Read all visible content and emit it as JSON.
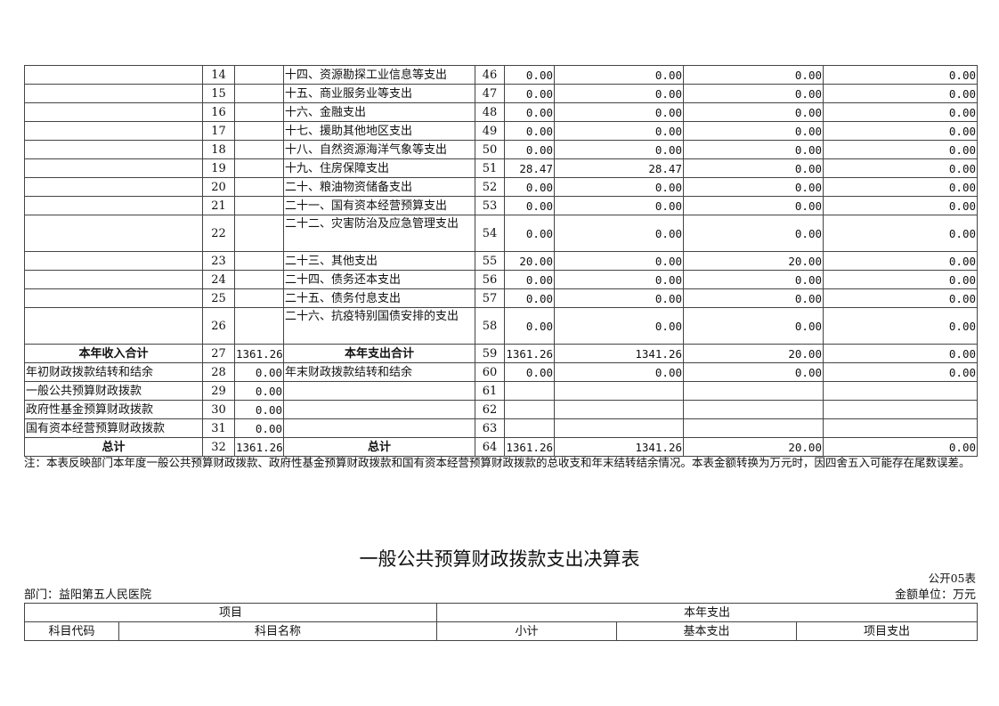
{
  "table1": {
    "rows": [
      {
        "ll": "",
        "ln": "14",
        "lv": "",
        "rl": "十四、资源勘探工业信息等支出",
        "rn": "46",
        "v": [
          "0.00",
          "0.00",
          "0.00",
          "0.00"
        ]
      },
      {
        "ll": "",
        "ln": "15",
        "lv": "",
        "rl": "十五、商业服务业等支出",
        "rn": "47",
        "v": [
          "0.00",
          "0.00",
          "0.00",
          "0.00"
        ]
      },
      {
        "ll": "",
        "ln": "16",
        "lv": "",
        "rl": "十六、金融支出",
        "rn": "48",
        "v": [
          "0.00",
          "0.00",
          "0.00",
          "0.00"
        ]
      },
      {
        "ll": "",
        "ln": "17",
        "lv": "",
        "rl": "十七、援助其他地区支出",
        "rn": "49",
        "v": [
          "0.00",
          "0.00",
          "0.00",
          "0.00"
        ]
      },
      {
        "ll": "",
        "ln": "18",
        "lv": "",
        "rl": "十八、自然资源海洋气象等支出",
        "rn": "50",
        "v": [
          "0.00",
          "0.00",
          "0.00",
          "0.00"
        ]
      },
      {
        "ll": "",
        "ln": "19",
        "lv": "",
        "rl": "十九、住房保障支出",
        "rn": "51",
        "v": [
          "28.47",
          "28.47",
          "0.00",
          "0.00"
        ]
      },
      {
        "ll": "",
        "ln": "20",
        "lv": "",
        "rl": "二十、粮油物资储备支出",
        "rn": "52",
        "v": [
          "0.00",
          "0.00",
          "0.00",
          "0.00"
        ]
      },
      {
        "ll": "",
        "ln": "21",
        "lv": "",
        "rl": "二十一、国有资本经营预算支出",
        "rn": "53",
        "v": [
          "0.00",
          "0.00",
          "0.00",
          "0.00"
        ]
      },
      {
        "ll": "",
        "ln": "22",
        "lv": "",
        "rl": "二十二、灾害防治及应急管理支出",
        "rn": "54",
        "v": [
          "0.00",
          "0.00",
          "0.00",
          "0.00"
        ],
        "tall": true
      },
      {
        "ll": "",
        "ln": "23",
        "lv": "",
        "rl": "二十三、其他支出",
        "rn": "55",
        "v": [
          "20.00",
          "0.00",
          "20.00",
          "0.00"
        ]
      },
      {
        "ll": "",
        "ln": "24",
        "lv": "",
        "rl": "二十四、债务还本支出",
        "rn": "56",
        "v": [
          "0.00",
          "0.00",
          "0.00",
          "0.00"
        ]
      },
      {
        "ll": "",
        "ln": "25",
        "lv": "",
        "rl": "二十五、债务付息支出",
        "rn": "57",
        "v": [
          "0.00",
          "0.00",
          "0.00",
          "0.00"
        ]
      },
      {
        "ll": "",
        "ln": "26",
        "lv": "",
        "rl": "二十六、抗疫特别国债安排的支出",
        "rn": "58",
        "v": [
          "0.00",
          "0.00",
          "0.00",
          "0.00"
        ],
        "tall": true
      },
      {
        "ll": "本年收入合计",
        "ln": "27",
        "lv": "1361.26",
        "rl": "本年支出合计",
        "rn": "59",
        "v": [
          "1361.26",
          "1341.26",
          "20.00",
          "0.00"
        ],
        "bold": true
      },
      {
        "ll": "年初财政拨款结转和结余",
        "ln": "28",
        "lv": "0.00",
        "rl": "年末财政拨款结转和结余",
        "rn": "60",
        "v": [
          "0.00",
          "0.00",
          "0.00",
          "0.00"
        ]
      },
      {
        "ll": "一般公共预算财政拨款",
        "ln": "29",
        "lv": "0.00",
        "rl": "",
        "rn": "61",
        "v": [
          "",
          "",
          "",
          ""
        ]
      },
      {
        "ll": "政府性基金预算财政拨款",
        "ln": "30",
        "lv": "0.00",
        "rl": "",
        "rn": "62",
        "v": [
          "",
          "",
          "",
          ""
        ]
      },
      {
        "ll": "国有资本经营预算财政拨款",
        "ln": "31",
        "lv": "0.00",
        "rl": "",
        "rn": "63",
        "v": [
          "",
          "",
          "",
          ""
        ]
      },
      {
        "ll": "总计",
        "ln": "32",
        "lv": "1361.26",
        "rl": "总计",
        "rn": "64",
        "v": [
          "1361.26",
          "1341.26",
          "20.00",
          "0.00"
        ],
        "bold": true
      }
    ]
  },
  "note": "注：本表反映部门本年度一般公共预算财政拨款、政府性基金预算财政拨款和国有资本经营预算财政拨款的总收支和年末结转结余情况。本表金额转换为万元时，因四舍五入可能存在尾数误差。",
  "table2": {
    "title": "一般公共预算财政拨款支出决算表",
    "code": "公开05表",
    "dept": "部门：益阳第五人民医院",
    "unit": "金额单位：万元",
    "h_item": "项目",
    "h_year": "本年支出",
    "h_code": "科目代码",
    "h_name": "科目名称",
    "h_sub": "小计",
    "h_basic": "基本支出",
    "h_proj": "项目支出"
  }
}
